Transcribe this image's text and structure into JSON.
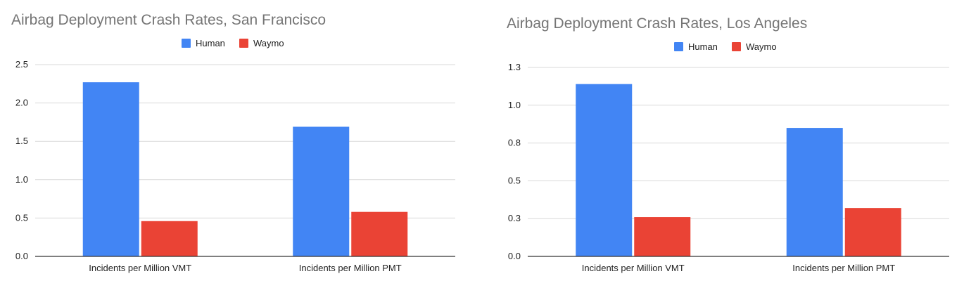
{
  "colors": {
    "human": "#4285F4",
    "waymo": "#EA4335",
    "grid": "#d9d9d9",
    "axis": "#333333",
    "title": "#757575",
    "text": "#222222"
  },
  "chart_data": [
    {
      "type": "bar",
      "title": "Airbag Deployment Crash Rates, San Francisco",
      "xlabel": "",
      "ylabel": "",
      "categories": [
        "Incidents per Million VMT",
        "Incidents per Million PMT"
      ],
      "series": [
        {
          "name": "Human",
          "values": [
            2.27,
            1.69
          ]
        },
        {
          "name": "Waymo",
          "values": [
            0.46,
            0.58
          ]
        }
      ],
      "ylim": [
        0,
        2.5
      ],
      "yticks": [
        "0.0",
        "0.5",
        "1.0",
        "1.5",
        "2.0",
        "2.5"
      ],
      "grid": true,
      "legend": "top-center"
    },
    {
      "type": "bar",
      "title": "Airbag Deployment Crash Rates, Los Angeles",
      "xlabel": "",
      "ylabel": "",
      "categories": [
        "Incidents per Million VMT",
        "Incidents per Million PMT"
      ],
      "series": [
        {
          "name": "Human",
          "values": [
            1.14,
            0.85
          ]
        },
        {
          "name": "Waymo",
          "values": [
            0.26,
            0.32
          ]
        }
      ],
      "ylim": [
        0,
        1.25
      ],
      "yticks": [
        "0.0",
        "0.3",
        "0.5",
        "0.8",
        "1.0",
        "1.3"
      ],
      "grid": true,
      "legend": "top-center"
    }
  ]
}
